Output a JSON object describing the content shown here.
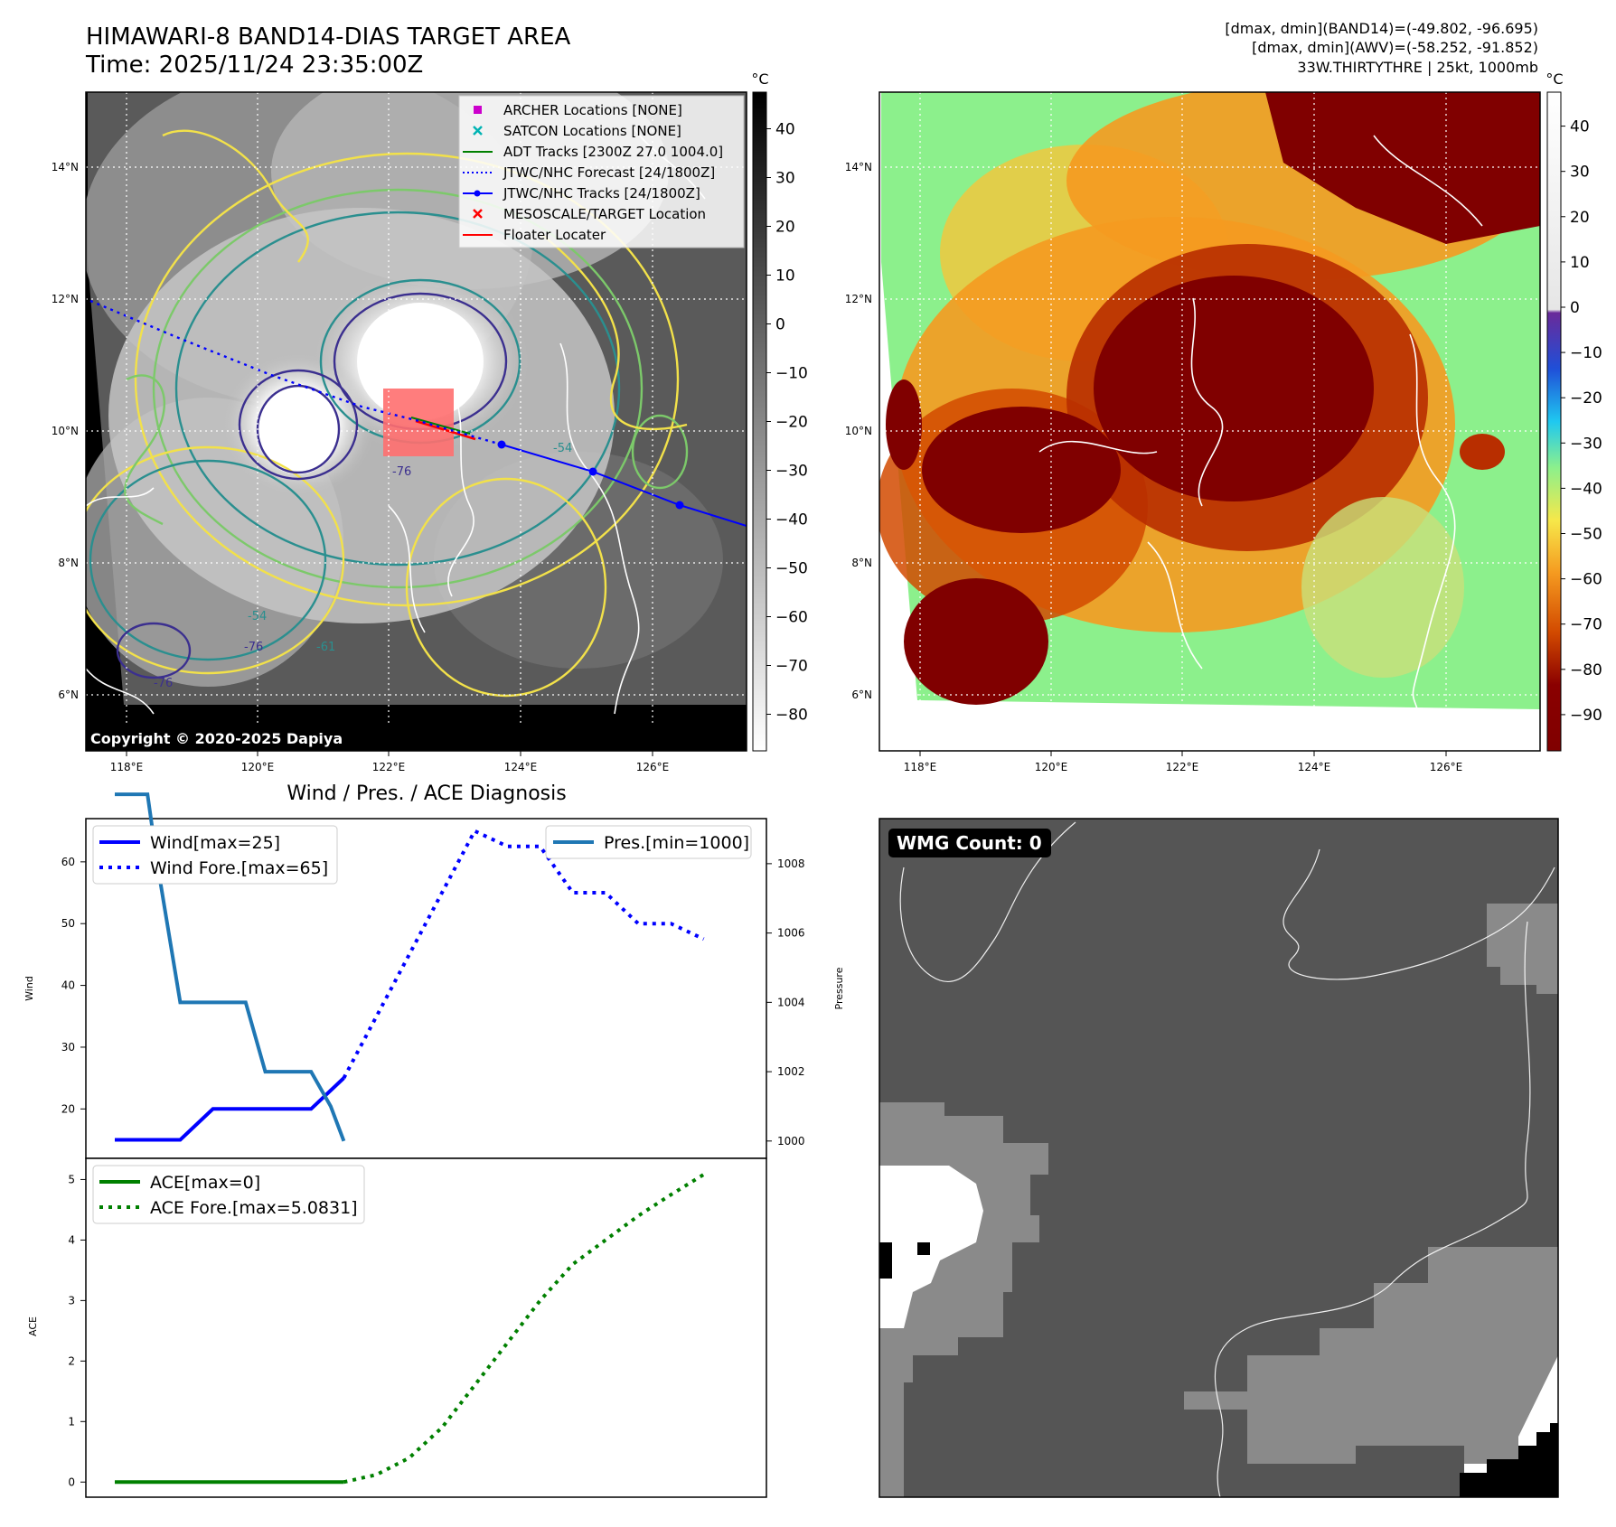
{
  "header": {
    "title": "HIMAWARI-8 BAND14-DIAS TARGET AREA",
    "time": "Time: 2025/11/24 23:35:00Z",
    "stats": [
      "[dmax, dmin](BAND14)=(-49.802, -96.695)",
      "[dmax, dmin](AWV)=(-58.252, -91.852)",
      "33W.THIRTYTHRE | 25kt, 1000mb"
    ]
  },
  "maps": {
    "lon_ticks": [
      "118°E",
      "120°E",
      "122°E",
      "124°E",
      "126°E"
    ],
    "lat_ticks": [
      "14°N",
      "12°N",
      "10°N",
      "8°N",
      "6°N"
    ],
    "copyright": "Copyright © 2020-2025 Dapiya",
    "contour_labels": [
      "-76",
      "-76",
      "-54",
      "-76",
      "-54",
      "-61"
    ],
    "colors": {
      "ir_bg": "#555555",
      "ocean": "#8cf08c",
      "cold": "#800000",
      "track": "#0000ff",
      "contour": "#2a8f8f",
      "contour_yellow": "#f2e14a",
      "contour_purple": "#3b2f8f"
    }
  },
  "legend": [
    {
      "label": "ARCHER Locations [NONE]",
      "marker": "square",
      "color": "#cc00cc"
    },
    {
      "label": "SATCON Locations [NONE]",
      "marker": "x",
      "color": "#00b3b3"
    },
    {
      "label": "ADT Tracks [2300Z 27.0 1004.0]",
      "marker": "line",
      "color": "#008000"
    },
    {
      "label": "JTWC/NHC Forecast [24/1800Z]",
      "marker": "dotted",
      "color": "#0000ff"
    },
    {
      "label": "JTWC/NHC Tracks [24/1800Z]",
      "marker": "line-dot",
      "color": "#0000ff"
    },
    {
      "label": "MESOSCALE/TARGET Location",
      "marker": "x",
      "color": "#ff0000"
    },
    {
      "label": "Floater Locater",
      "marker": "line",
      "color": "#ff0000"
    }
  ],
  "colorbar_left": {
    "unit": "°C",
    "ticks": [
      "40",
      "30",
      "20",
      "10",
      "0",
      "−10",
      "−20",
      "−30",
      "−40",
      "−50",
      "−60",
      "−70",
      "−80"
    ]
  },
  "colorbar_right": {
    "unit": "°C",
    "ticks": [
      "40",
      "30",
      "20",
      "10",
      "0",
      "−10",
      "−20",
      "−30",
      "−40",
      "−50",
      "−60",
      "−70",
      "−80",
      "−90"
    ]
  },
  "wmg": {
    "label": "WMG Count: 0"
  },
  "chart_data": [
    {
      "type": "line",
      "title": "Wind / Pres. / ACE Diagnosis",
      "ylabel": "Wind",
      "ylim": [
        12,
        67
      ],
      "yticks": [
        20,
        30,
        40,
        50,
        60
      ],
      "y2label": "Pressure",
      "y2lim": [
        999.5,
        1009.3
      ],
      "y2ticks": [
        1000,
        1002,
        1004,
        1006,
        1008
      ],
      "legend_left": [
        "Wind[max=25]",
        "Wind Fore.[max=65]"
      ],
      "legend_right": [
        "Pres.[min=1000]"
      ],
      "series": [
        {
          "name": "Wind[max=25]",
          "color": "#0000ff",
          "style": "solid",
          "axis": "left",
          "x": [
            0,
            1,
            2,
            3,
            4,
            5,
            6,
            7
          ],
          "values": [
            15,
            15,
            15,
            20,
            20,
            20,
            20,
            25
          ]
        },
        {
          "name": "Wind Fore.[max=65]",
          "color": "#0000ff",
          "style": "dotted",
          "axis": "left",
          "x": [
            7,
            8,
            9,
            10,
            11,
            12,
            13,
            14,
            15,
            16,
            17,
            18
          ],
          "values": [
            25,
            35,
            45,
            55,
            65,
            62.5,
            62.5,
            55,
            55,
            50,
            50,
            47.5
          ]
        },
        {
          "name": "Pres.[min=1000]",
          "color": "#1f77b4",
          "style": "solid",
          "axis": "right",
          "x": [
            0,
            0.6,
            1,
            1.3,
            2,
            3,
            3.5,
            4,
            4.6,
            5,
            5.5,
            6,
            6.6,
            7
          ],
          "values": [
            1010,
            1010,
            1010,
            1008,
            1004,
            1004,
            1004,
            1004,
            1002,
            1002,
            1002,
            1002,
            1001,
            1000
          ]
        }
      ]
    },
    {
      "type": "line",
      "ylabel": "ACE",
      "ylim": [
        -0.25,
        5.35
      ],
      "yticks": [
        0,
        1,
        2,
        3,
        4,
        5
      ],
      "legend": [
        "ACE[max=0]",
        "ACE Fore.[max=5.0831]"
      ],
      "series": [
        {
          "name": "ACE[max=0]",
          "color": "#008000",
          "style": "solid",
          "x": [
            0,
            1,
            2,
            3,
            4,
            5,
            6,
            7
          ],
          "values": [
            0,
            0,
            0,
            0,
            0,
            0,
            0,
            0
          ]
        },
        {
          "name": "ACE Fore.[max=5.0831]",
          "color": "#008000",
          "style": "dotted",
          "x": [
            7,
            8,
            9,
            10,
            11,
            12,
            13,
            14,
            15,
            16,
            17,
            18
          ],
          "values": [
            0,
            0.122,
            0.4,
            0.9,
            1.6,
            2.3,
            3.0,
            3.6,
            4.0,
            4.4,
            4.75,
            5.0831
          ]
        }
      ]
    }
  ]
}
